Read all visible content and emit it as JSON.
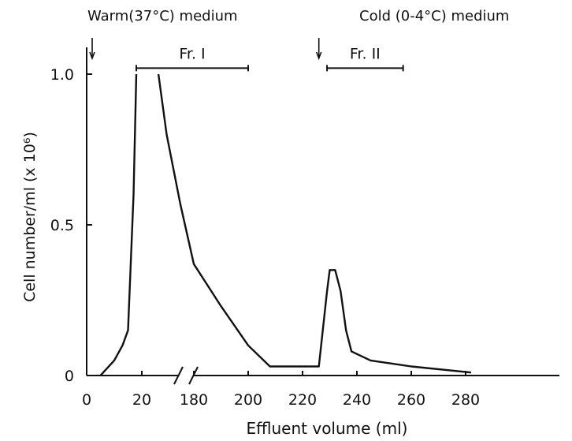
{
  "chart_data": {
    "type": "line",
    "title": "",
    "xlabel": "Effluent volume (ml)",
    "ylabel": "Cell number/ml (x 10⁶)",
    "ylim": [
      0,
      1.1
    ],
    "y_ticks": [
      {
        "value": 0,
        "label": "0"
      },
      {
        "value": 0.5,
        "label": "0.5"
      },
      {
        "value": 1.0,
        "label": "1.0"
      }
    ],
    "x_ticks": [
      "0",
      "20",
      "180",
      "200",
      "220",
      "240",
      "260",
      "280"
    ],
    "x_axis_break": "between 20 and 160 ml",
    "grid": false,
    "series": [
      {
        "name": "",
        "segment": "before-break",
        "x": [
          5,
          10,
          13,
          15,
          17,
          18
        ],
        "y": [
          0,
          0.05,
          0.1,
          0.15,
          0.6,
          1.0
        ]
      },
      {
        "name": "",
        "segment": "after-break",
        "x": [
          167,
          170,
          175,
          180,
          190,
          200,
          208,
          215,
          226,
          229,
          230,
          232,
          234,
          236,
          238,
          245,
          260,
          282
        ],
        "y": [
          1.0,
          0.8,
          0.57,
          0.37,
          0.23,
          0.1,
          0.03,
          0.03,
          0.03,
          0.28,
          0.35,
          0.35,
          0.28,
          0.15,
          0.08,
          0.05,
          0.03,
          0.01
        ]
      }
    ],
    "annotations": [
      {
        "text": "Warm(37°C) medium",
        "arrow_at_x": 2
      },
      {
        "text": "Cold (0-4°C) medium",
        "arrow_at_x": 226
      }
    ],
    "fractions": [
      {
        "label": "Fr. I",
        "x_start": 18,
        "x_end": 200,
        "y": 1.02
      },
      {
        "label": "Fr. II",
        "x_start": 229,
        "x_end": 257,
        "y": 1.02
      }
    ]
  }
}
